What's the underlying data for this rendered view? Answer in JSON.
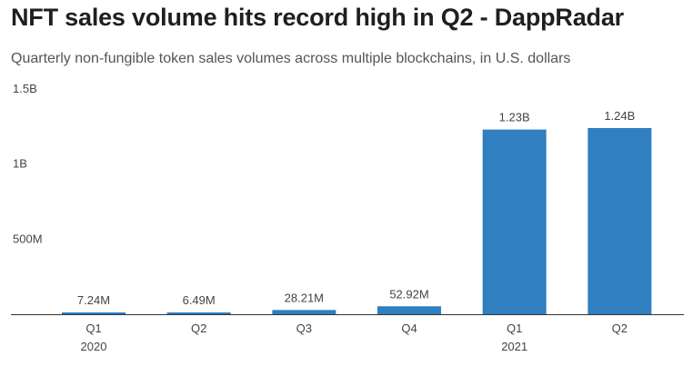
{
  "title": "NFT sales volume hits record high in Q2 - DappRadar",
  "subtitle": "Quarterly non-fungible token sales volumes across multiple blockchains, in U.S. dollars",
  "chart_data": {
    "type": "bar",
    "title": "NFT sales volume hits record high in Q2 - DappRadar",
    "subtitle": "Quarterly non-fungible token sales volumes across multiple blockchains, in U.S. dollars",
    "categories": [
      "Q1",
      "Q2",
      "Q3",
      "Q4",
      "Q1",
      "Q2"
    ],
    "year_labels": [
      "2020",
      "",
      "",
      "",
      "2021",
      ""
    ],
    "values": [
      7240000,
      6490000,
      28210000,
      52920000,
      1230000000,
      1240000000
    ],
    "value_labels": [
      "7.24M",
      "6.49M",
      "28.21M",
      "52.92M",
      "1.23B",
      "1.24B"
    ],
    "yticks": [
      {
        "value": 1500000000,
        "label": "1.5B"
      },
      {
        "value": 1000000000,
        "label": "1B"
      },
      {
        "value": 500000000,
        "label": "500M"
      }
    ],
    "ylim": [
      0,
      1500000000
    ],
    "xlabel": "",
    "ylabel": "",
    "grid": false,
    "bar_color": "#2f7fc1"
  }
}
